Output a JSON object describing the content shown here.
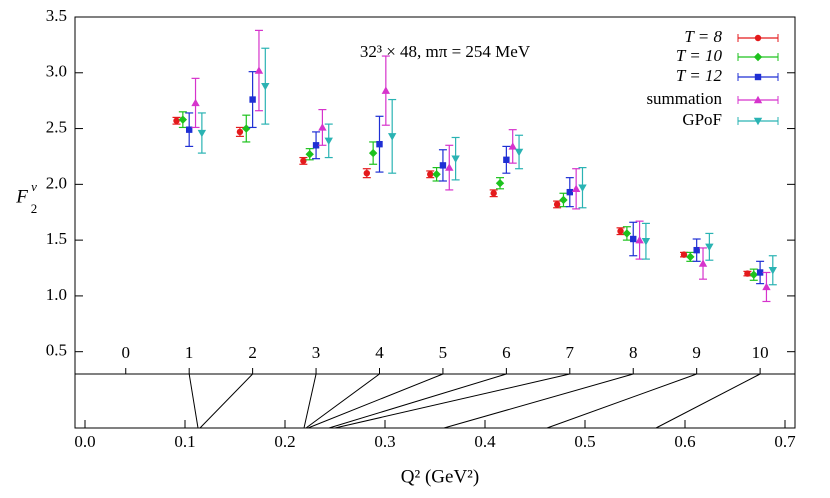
{
  "chart_data": {
    "type": "errorbar",
    "ylabel": {
      "base": "F",
      "sub": "2",
      "sup": "v"
    },
    "xlabel": "Q² (GeV²)",
    "annotation": "32³ × 48, mπ = 254 MeV",
    "ylim": [
      0.3,
      3.5
    ],
    "yticks": [
      {
        "value": 0.5,
        "label": "0.5"
      },
      {
        "value": 1,
        "label": "1.0"
      },
      {
        "value": 1.5,
        "label": "1.5"
      },
      {
        "value": 2,
        "label": "2.0"
      },
      {
        "value": 2.5,
        "label": "2.5"
      },
      {
        "value": 3,
        "label": "3.0"
      },
      {
        "value": 3.5,
        "label": "3.5"
      }
    ],
    "index_lim": [
      -0.8,
      10.55
    ],
    "index_ticks": [
      0,
      1,
      2,
      3,
      4,
      5,
      6,
      7,
      8,
      9,
      10
    ],
    "xlim": [
      -0.01,
      0.71
    ],
    "xticks": [
      {
        "value": 0,
        "label": "0.0"
      },
      0.1,
      0.2,
      0.3,
      0.4,
      0.5,
      0.6,
      0.7
    ],
    "x": [
      1,
      2,
      3,
      4,
      5,
      6,
      7,
      8,
      9,
      10
    ],
    "q2": [
      0.113,
      0.115,
      0.219,
      0.221,
      0.223,
      0.244,
      0.25,
      0.359,
      0.462,
      0.571
    ],
    "legend": "upper right",
    "series": [
      {
        "name": "T = 8",
        "color": "#e41a1c",
        "marker": "circle",
        "values": [
          2.57,
          2.47,
          2.21,
          2.1,
          2.09,
          1.92,
          1.82,
          1.58,
          1.37,
          1.2
        ],
        "errors": [
          0.03,
          0.04,
          0.03,
          0.04,
          0.03,
          0.03,
          0.03,
          0.03,
          0.02,
          0.02
        ]
      },
      {
        "name": "T = 10",
        "color": "#1dc21d",
        "marker": "diamond",
        "values": [
          2.58,
          2.5,
          2.27,
          2.28,
          2.09,
          2.01,
          1.86,
          1.56,
          1.35,
          1.19
        ],
        "errors": [
          0.07,
          0.12,
          0.05,
          0.1,
          0.06,
          0.05,
          0.06,
          0.06,
          0.04,
          0.05
        ]
      },
      {
        "name": "T = 12",
        "color": "#1f2fd4",
        "marker": "square",
        "values": [
          2.49,
          2.76,
          2.35,
          2.36,
          2.17,
          2.22,
          1.93,
          1.51,
          1.41,
          1.21
        ],
        "errors": [
          0.15,
          0.25,
          0.12,
          0.25,
          0.14,
          0.12,
          0.13,
          0.15,
          0.1,
          0.1
        ]
      },
      {
        "name": "summation",
        "color": "#d633cc",
        "marker": "triangle-up",
        "values": [
          2.73,
          3.02,
          2.51,
          2.84,
          2.15,
          2.34,
          1.96,
          1.5,
          1.29,
          1.08
        ],
        "errors": [
          0.22,
          0.36,
          0.16,
          0.31,
          0.2,
          0.15,
          0.18,
          0.17,
          0.14,
          0.13
        ]
      },
      {
        "name": "GPoF",
        "color": "#2ab3b3",
        "marker": "triangle-down",
        "values": [
          2.46,
          2.88,
          2.39,
          2.43,
          2.23,
          2.29,
          1.97,
          1.49,
          1.44,
          1.23
        ],
        "errors": [
          0.18,
          0.34,
          0.15,
          0.33,
          0.19,
          0.15,
          0.18,
          0.16,
          0.12,
          0.13
        ]
      }
    ]
  }
}
